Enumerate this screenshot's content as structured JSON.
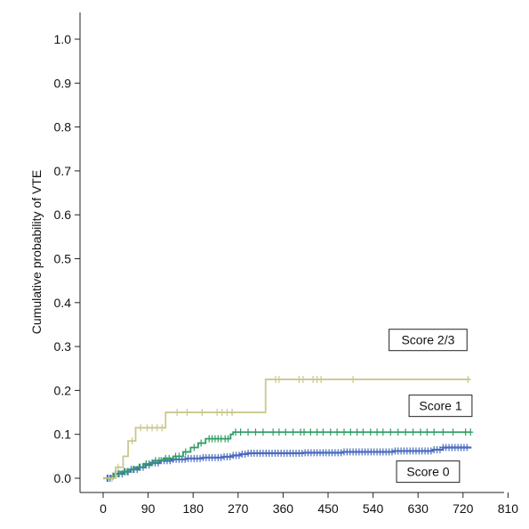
{
  "chart_data": {
    "type": "line",
    "step": true,
    "xlabel": "",
    "ylabel": "Cumulative probability of VTE",
    "xlim": [
      0,
      810
    ],
    "ylim": [
      0,
      1
    ],
    "xticks": [
      0,
      90,
      180,
      270,
      360,
      450,
      540,
      630,
      720,
      810
    ],
    "yticks": [
      0.0,
      0.1,
      0.2,
      0.3,
      0.4,
      0.5,
      0.6,
      0.7,
      0.8,
      0.9,
      1.0
    ],
    "ytick_labels": [
      "0.0",
      "0.1",
      "0.2",
      "0.3",
      "0.4",
      "0.5",
      "0.6",
      "0.7",
      "0.8",
      "0.9",
      "1.0"
    ],
    "grid": false,
    "series": [
      {
        "name": "Score 0",
        "color": "#4a6bbf",
        "points": [
          [
            0,
            0
          ],
          [
            15,
            0.005
          ],
          [
            25,
            0.01
          ],
          [
            40,
            0.015
          ],
          [
            55,
            0.02
          ],
          [
            70,
            0.025
          ],
          [
            85,
            0.03
          ],
          [
            95,
            0.035
          ],
          [
            115,
            0.04
          ],
          [
            140,
            0.043
          ],
          [
            165,
            0.045
          ],
          [
            200,
            0.047
          ],
          [
            240,
            0.049
          ],
          [
            260,
            0.052
          ],
          [
            275,
            0.055
          ],
          [
            290,
            0.057
          ],
          [
            400,
            0.058
          ],
          [
            480,
            0.06
          ],
          [
            580,
            0.062
          ],
          [
            660,
            0.065
          ],
          [
            680,
            0.07
          ],
          [
            735,
            0.072
          ]
        ],
        "censor": [
          8,
          14,
          20,
          26,
          32,
          38,
          44,
          50,
          56,
          62,
          68,
          74,
          80,
          86,
          92,
          98,
          104,
          110,
          116,
          122,
          128,
          134,
          140,
          146,
          152,
          158,
          164,
          170,
          176,
          182,
          188,
          194,
          200,
          206,
          212,
          218,
          224,
          230,
          236,
          242,
          248,
          254,
          260,
          266,
          272,
          278,
          284,
          290,
          296,
          302,
          308,
          314,
          320,
          326,
          332,
          338,
          344,
          350,
          356,
          362,
          368,
          374,
          380,
          386,
          392,
          398,
          404,
          410,
          416,
          422,
          428,
          434,
          440,
          446,
          452,
          458,
          464,
          470,
          476,
          482,
          488,
          494,
          500,
          506,
          512,
          518,
          524,
          530,
          536,
          542,
          548,
          554,
          560,
          566,
          572,
          578,
          584,
          590,
          596,
          602,
          608,
          614,
          620,
          626,
          632,
          638,
          644,
          650,
          656,
          662,
          668,
          674,
          680,
          686,
          692,
          698,
          704,
          710,
          716,
          722,
          728
        ]
      },
      {
        "name": "Score 1",
        "color": "#2f9e63",
        "points": [
          [
            0,
            0
          ],
          [
            20,
            0.01
          ],
          [
            35,
            0.015
          ],
          [
            50,
            0.02
          ],
          [
            65,
            0.025
          ],
          [
            80,
            0.033
          ],
          [
            100,
            0.04
          ],
          [
            120,
            0.045
          ],
          [
            140,
            0.05
          ],
          [
            160,
            0.06
          ],
          [
            175,
            0.07
          ],
          [
            190,
            0.08
          ],
          [
            205,
            0.09
          ],
          [
            255,
            0.1
          ],
          [
            260,
            0.105
          ],
          [
            735,
            0.105
          ]
        ],
        "censor": [
          10,
          24,
          30,
          42,
          48,
          60,
          72,
          86,
          92,
          105,
          112,
          125,
          132,
          145,
          152,
          165,
          182,
          196,
          212,
          218,
          224,
          230,
          236,
          244,
          250,
          265,
          275,
          290,
          305,
          320,
          340,
          352,
          365,
          380,
          395,
          402,
          415,
          428,
          440,
          455,
          468,
          482,
          495,
          508,
          520,
          535,
          548,
          560,
          575,
          590,
          605,
          620,
          635,
          648,
          662,
          680,
          700,
          725,
          735
        ]
      },
      {
        "name": "Score 2/3",
        "color": "#c9c88e",
        "points": [
          [
            0,
            0
          ],
          [
            25,
            0.025
          ],
          [
            40,
            0.05
          ],
          [
            50,
            0.085
          ],
          [
            65,
            0.115
          ],
          [
            125,
            0.15
          ],
          [
            265,
            0.15
          ],
          [
            325,
            0.225
          ],
          [
            735,
            0.225
          ]
        ],
        "censor": [
          18,
          30,
          58,
          75,
          88,
          98,
          108,
          118,
          148,
          168,
          198,
          228,
          238,
          248,
          258,
          258,
          345,
          352,
          392,
          400,
          420,
          428,
          436,
          500,
          730
        ]
      }
    ],
    "annotations": [
      {
        "label": "Score 2/3",
        "series": 2,
        "x": 650,
        "y": 0.315
      },
      {
        "label": "Score 1",
        "series": 1,
        "x": 675,
        "y": 0.165
      },
      {
        "label": "Score 0",
        "series": 0,
        "x": 650,
        "y": 0.015
      }
    ]
  }
}
